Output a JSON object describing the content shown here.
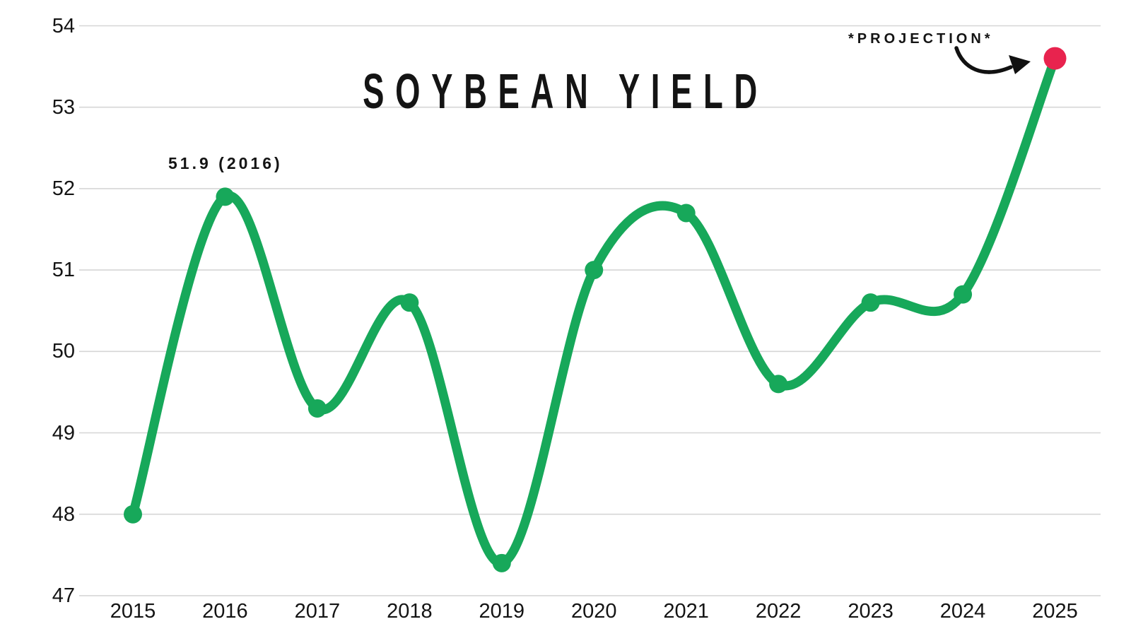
{
  "chart_data": {
    "type": "line",
    "title": "SOYBEAN YIELD",
    "categories": [
      "2015",
      "2016",
      "2017",
      "2018",
      "2019",
      "2020",
      "2021",
      "2022",
      "2023",
      "2024",
      "2025"
    ],
    "series": [
      {
        "name": "Soybean yield",
        "values": [
          48.0,
          51.9,
          49.3,
          50.6,
          47.4,
          51.0,
          51.7,
          49.6,
          50.6,
          50.7,
          53.6
        ]
      }
    ],
    "ylim": [
      47,
      54
    ],
    "yticks": [
      54,
      53,
      52,
      51,
      50,
      49,
      48,
      47
    ],
    "grid": "horizontal",
    "legend": "none",
    "annotations": {
      "peak_label": "51.9 (2016)",
      "projection_label": "*PROJECTION*"
    },
    "projection_point": {
      "year": "2025",
      "value": 53.6
    }
  },
  "colors": {
    "line": "#17A85A",
    "point": "#17A85A",
    "projection_point": "#E8234E",
    "grid": "#D6D6D6",
    "arrow": "#111111",
    "text": "#141414"
  }
}
